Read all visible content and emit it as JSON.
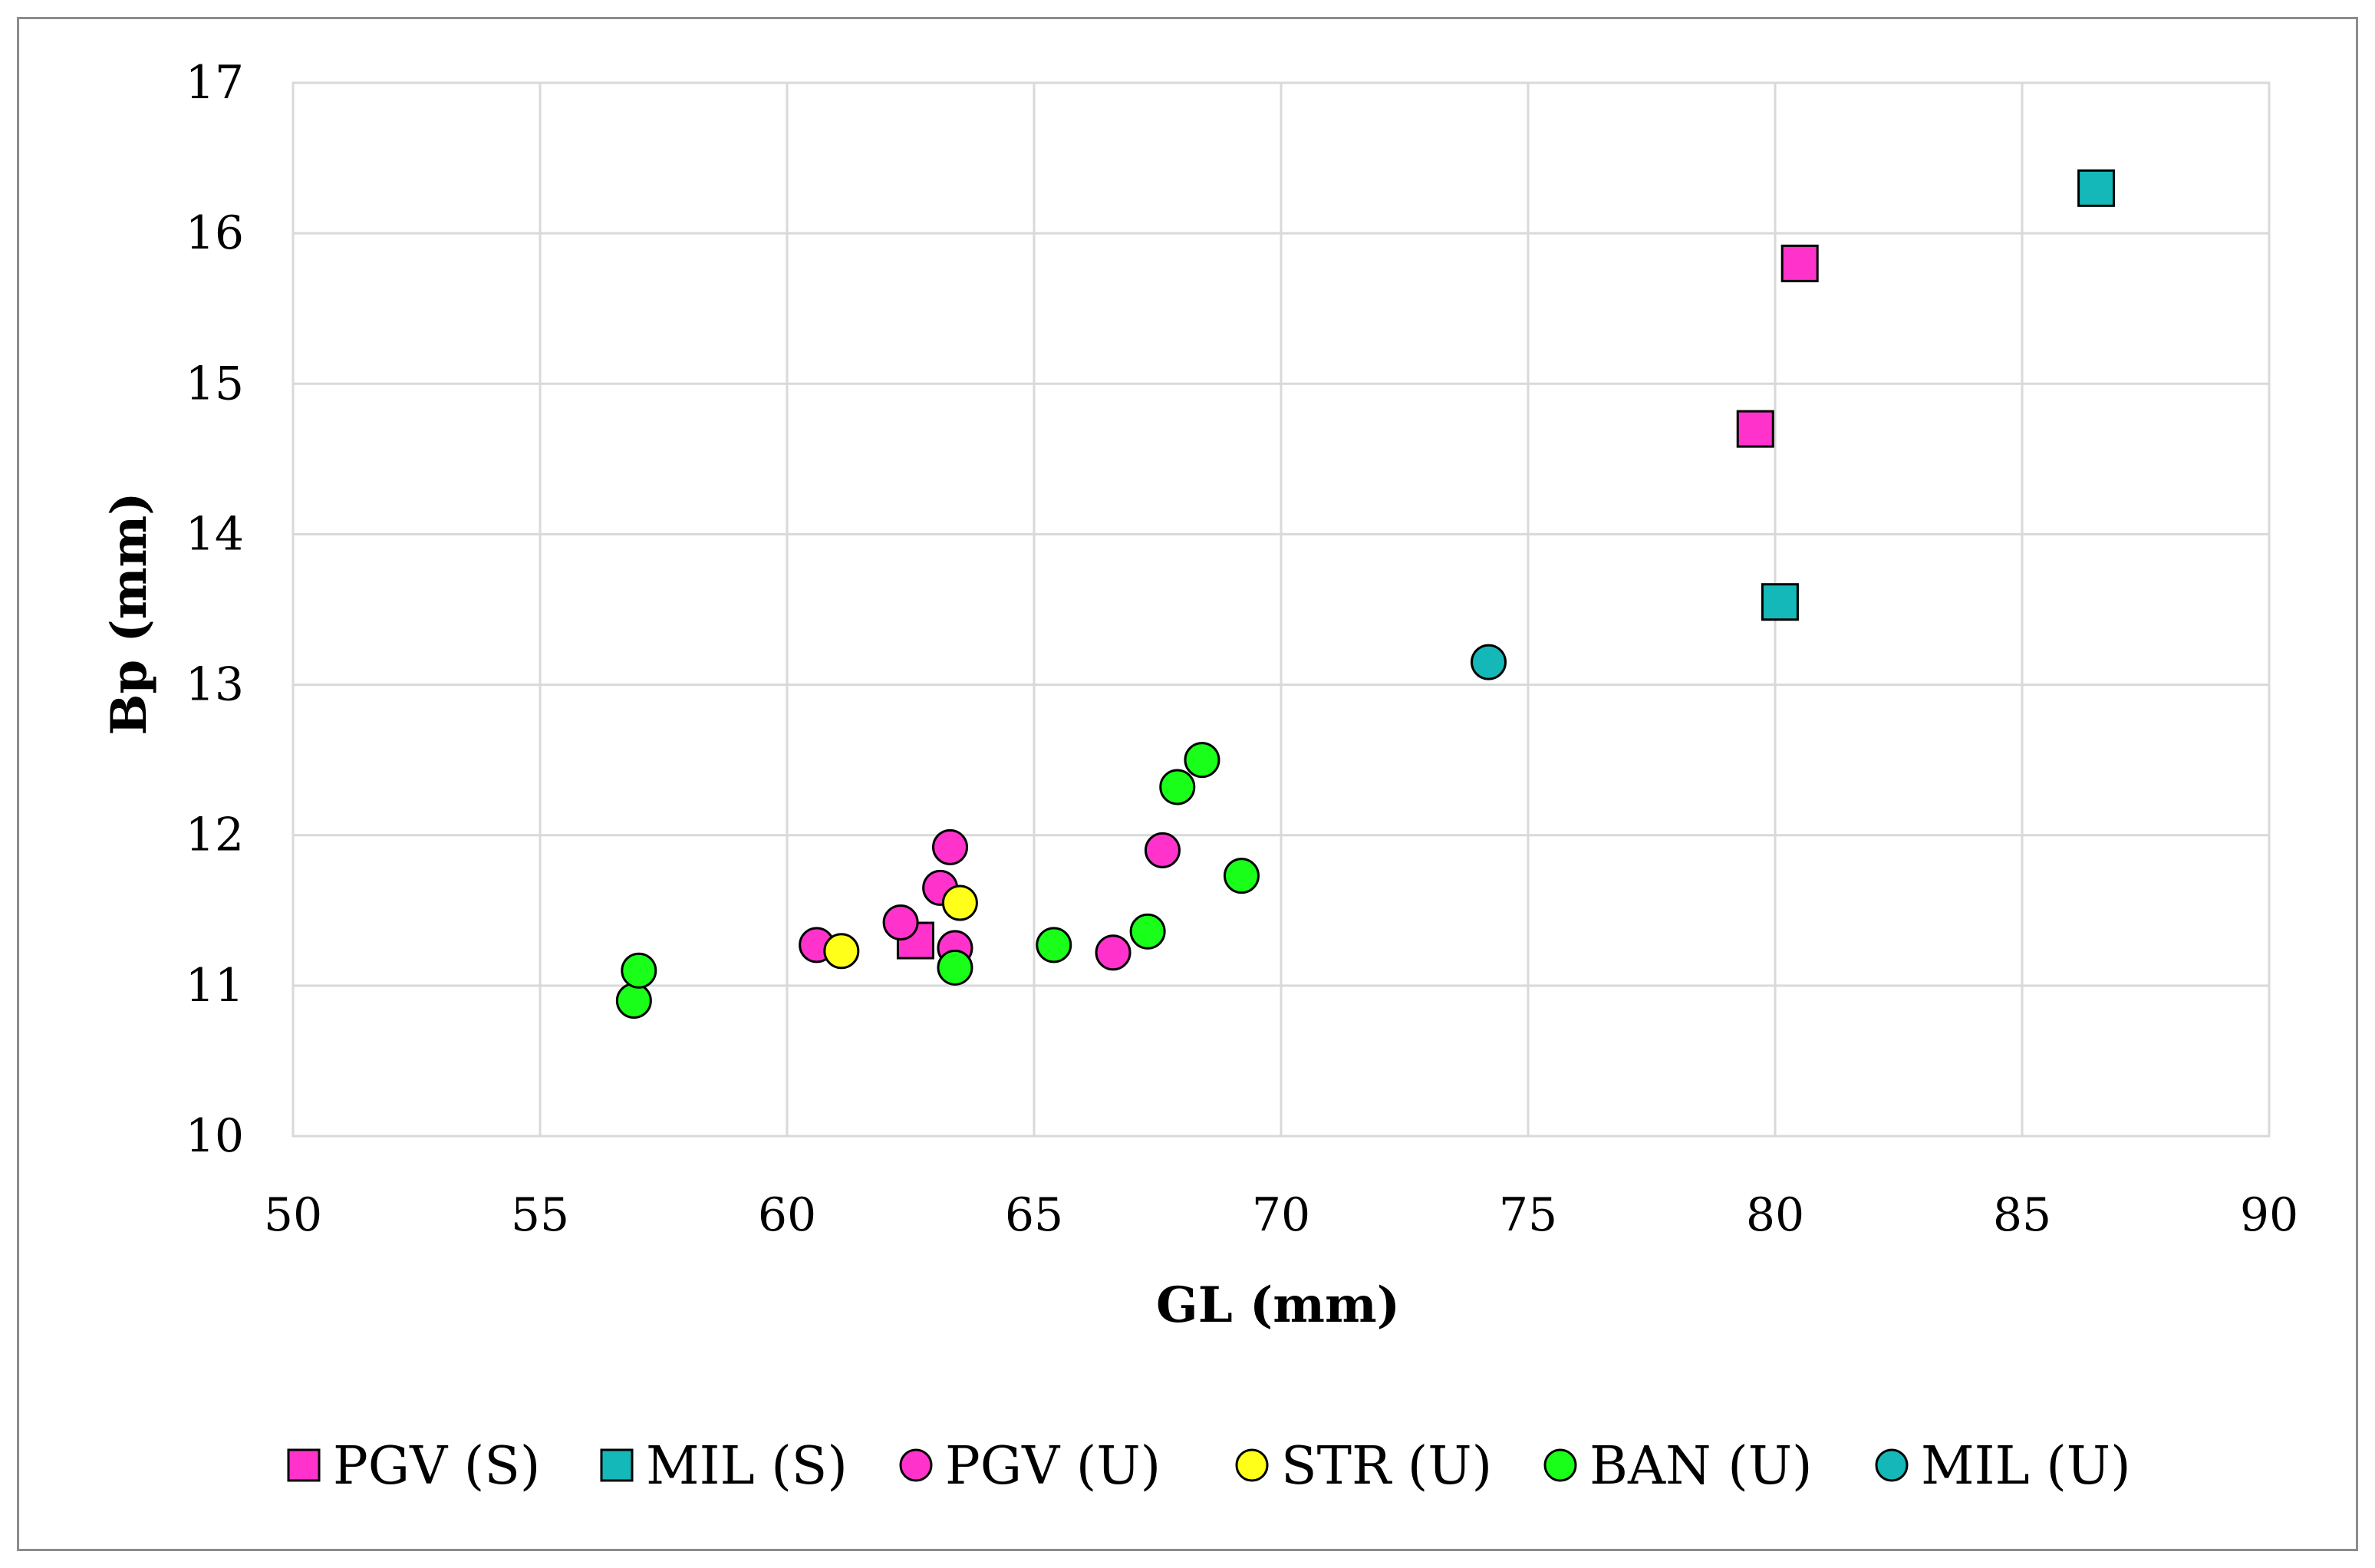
{
  "chart_data": {
    "type": "scatter",
    "title": "",
    "xlabel": "GL (mm)",
    "ylabel": "Bp (mm)",
    "xlim": [
      50,
      90
    ],
    "ylim": [
      10,
      17
    ],
    "xticks": [
      "50",
      "55",
      "60",
      "65",
      "70",
      "75",
      "80",
      "85",
      "90"
    ],
    "yticks": [
      "10",
      "11",
      "12",
      "13",
      "14",
      "15",
      "16",
      "17"
    ],
    "grid": true,
    "legend_position": "bottom",
    "series": [
      {
        "name": "PGV (S)",
        "marker": "square",
        "color": "#ff33cc",
        "points": [
          [
            62.6,
            11.3
          ],
          [
            79.6,
            14.7
          ],
          [
            80.5,
            15.8
          ]
        ]
      },
      {
        "name": "MIL (S)",
        "marker": "square",
        "color": "#14b8b8",
        "points": [
          [
            80.1,
            13.55
          ],
          [
            86.5,
            16.3
          ]
        ]
      },
      {
        "name": "PGV (U)",
        "marker": "circle",
        "color": "#ff33cc",
        "points": [
          [
            60.6,
            11.27
          ],
          [
            62.3,
            11.42
          ],
          [
            63.1,
            11.65
          ],
          [
            63.3,
            11.92
          ],
          [
            63.4,
            11.25
          ],
          [
            66.6,
            11.22
          ],
          [
            67.6,
            11.9
          ]
        ]
      },
      {
        "name": "STR (U)",
        "marker": "circle",
        "color": "#ffff1a",
        "points": [
          [
            61.1,
            11.23
          ],
          [
            63.5,
            11.55
          ]
        ]
      },
      {
        "name": "BAN (U)",
        "marker": "circle",
        "color": "#1aff1a",
        "points": [
          [
            56.9,
            10.9
          ],
          [
            57.0,
            11.1
          ],
          [
            63.4,
            11.12
          ],
          [
            65.4,
            11.27
          ],
          [
            67.3,
            11.36
          ],
          [
            67.9,
            12.32
          ],
          [
            68.4,
            12.5
          ],
          [
            69.2,
            11.73
          ]
        ]
      },
      {
        "name": "MIL (U)",
        "marker": "circle",
        "color": "#14b8b8",
        "points": [
          [
            74.2,
            13.15
          ]
        ]
      }
    ]
  }
}
